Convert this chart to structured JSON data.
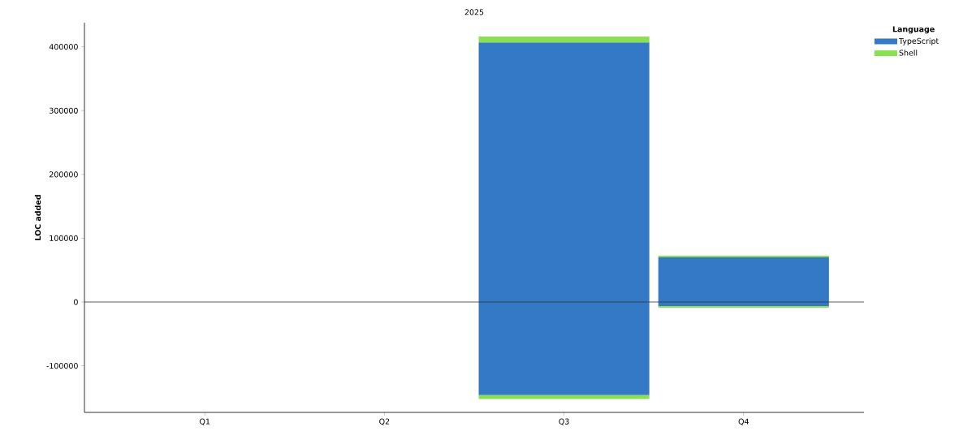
{
  "chart_data": {
    "type": "bar",
    "stacked": true,
    "title": "2025",
    "ylabel": "LOC added",
    "legend_title": "Language",
    "legend": "top right",
    "categories": [
      "Q1",
      "Q2",
      "Q3",
      "Q4"
    ],
    "series": [
      {
        "name": "TypeScript",
        "color": "#3379c6",
        "values": [
          null,
          null,
          407000,
          70000
        ]
      },
      {
        "name": "Shell",
        "color": "#89e051",
        "values": [
          null,
          null,
          9000,
          2500
        ]
      },
      {
        "color": "#3379c6",
        "values": [
          null,
          null,
          -146000,
          -6400
        ]
      },
      {
        "color": "#89e051",
        "values": [
          null,
          null,
          -6000,
          -2500
        ]
      }
    ],
    "ylim": [
      -173000,
      437700
    ],
    "yticks": [
      -100000,
      0,
      100000,
      200000,
      300000,
      400000
    ],
    "ref_lines": [
      {
        "axis": "y",
        "value": 0,
        "color": "#333333"
      }
    ]
  }
}
